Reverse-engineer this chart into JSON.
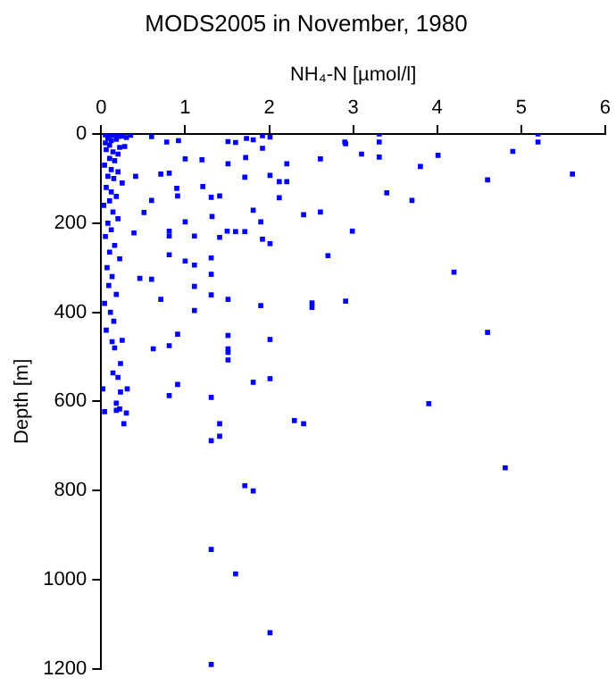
{
  "chart_data": {
    "type": "scatter",
    "title": "MODS2005 in November, 1980",
    "xlabel": "NH₄-N [µmol/l]",
    "ylabel": "Depth [m]",
    "xlim": [
      0,
      6
    ],
    "xticks": [
      0,
      1,
      2,
      3,
      4,
      5,
      6
    ],
    "ylim": [
      1200,
      0
    ],
    "yticks": [
      0,
      200,
      400,
      600,
      800,
      1000,
      1200
    ],
    "grid": false,
    "legend": false,
    "marker": "square",
    "series": [
      {
        "color": "#0000ff",
        "x": [
          3.31,
          5.2,
          5.2,
          2.91,
          3.31,
          3.1,
          3.31,
          4.01,
          4.9,
          3.8,
          5.61,
          4.6,
          3.4,
          3.7,
          2.99,
          2.7,
          4.2,
          2.91,
          4.6,
          3.9,
          4.81,
          0.6,
          0.78,
          0.92,
          1.0,
          1.2,
          1.51,
          1.6,
          1.73,
          1.81,
          1.92,
          1.92,
          2.01,
          2.21,
          2.61,
          2.9,
          1.72,
          1.51,
          0.71,
          0.81,
          0.41,
          1.71,
          2.01,
          2.12,
          2.21,
          1.21,
          0.9,
          0.91,
          1.41,
          1.31,
          0.6,
          2.12,
          1.81,
          2.41,
          2.61,
          1.32,
          0.51,
          1.0,
          1.9,
          1.6,
          1.5,
          0.81,
          0.81,
          1.11,
          1.41,
          1.71,
          1.92,
          2.01,
          0.39,
          0.81,
          1.0,
          1.11,
          1.31,
          0.6,
          0.46,
          1.11,
          1.31,
          1.31,
          1.51,
          0.71,
          1.9,
          2.51,
          2.51,
          1.11,
          0.91,
          1.51,
          2.01,
          0.81,
          0.62,
          1.51,
          1.51,
          1.51,
          1.81,
          2.01,
          0.91,
          0.81,
          1.31,
          1.41,
          1.41,
          1.31,
          2.3,
          2.41,
          1.71,
          1.81,
          1.31,
          1.6,
          2.01,
          1.31,
          0.02,
          0.04,
          0.18,
          0.18,
          0.22,
          0.3,
          0.27,
          0.23,
          0.31,
          0.14,
          0.23,
          0.2,
          0.16,
          0.13,
          0.25,
          0.05,
          0.1,
          0.15,
          0.2,
          0.25,
          0.3,
          0.35,
          0.08,
          0.12,
          0.18,
          0.05,
          0.1,
          0.22,
          0.28,
          0.06,
          0.14,
          0.2,
          0.1,
          0.16,
          0.04,
          0.12,
          0.2,
          0.08,
          0.15,
          0.25,
          0.06,
          0.12,
          0.18,
          0.1,
          0.03,
          0.14,
          0.2,
          0.08,
          0.12,
          0.05,
          0.16,
          0.1,
          0.22,
          0.07,
          0.13,
          0.09,
          0.18,
          0.04,
          0.11,
          0.15,
          0.06
        ],
        "values": [
          0,
          0,
          18,
          22,
          18,
          45,
          52,
          48,
          39,
          73,
          90,
          103,
          132,
          149,
          218,
          273,
          310,
          375,
          445,
          605,
          749,
          6,
          18,
          15,
          56,
          58,
          17,
          19,
          10,
          13,
          4,
          32,
          7,
          67,
          56,
          18,
          53,
          67,
          90,
          88,
          95,
          97,
          93,
          107,
          107,
          118,
          122,
          139,
          139,
          142,
          149,
          143,
          171,
          181,
          175,
          185,
          176,
          197,
          197,
          219,
          218,
          218,
          229,
          229,
          232,
          219,
          236,
          246,
          222,
          271,
          285,
          294,
          278,
          326,
          324,
          342,
          315,
          361,
          371,
          371,
          385,
          379,
          389,
          396,
          449,
          452,
          461,
          475,
          482,
          482,
          490,
          507,
          557,
          549,
          562,
          587,
          591,
          650,
          678,
          688,
          643,
          650,
          789,
          801,
          932,
          987,
          1119,
          1190,
          572,
          623,
          620,
          604,
          617,
          626,
          650,
          579,
          572,
          536,
          515,
          546,
          480,
          466,
          463,
          2,
          4,
          3,
          6,
          5,
          8,
          3,
          10,
          15,
          12,
          20,
          25,
          30,
          28,
          35,
          40,
          45,
          55,
          60,
          70,
          80,
          85,
          95,
          100,
          110,
          120,
          130,
          140,
          150,
          160,
          175,
          190,
          200,
          215,
          230,
          250,
          265,
          280,
          300,
          320,
          340,
          360,
          380,
          400,
          420,
          440
        ]
      }
    ]
  }
}
